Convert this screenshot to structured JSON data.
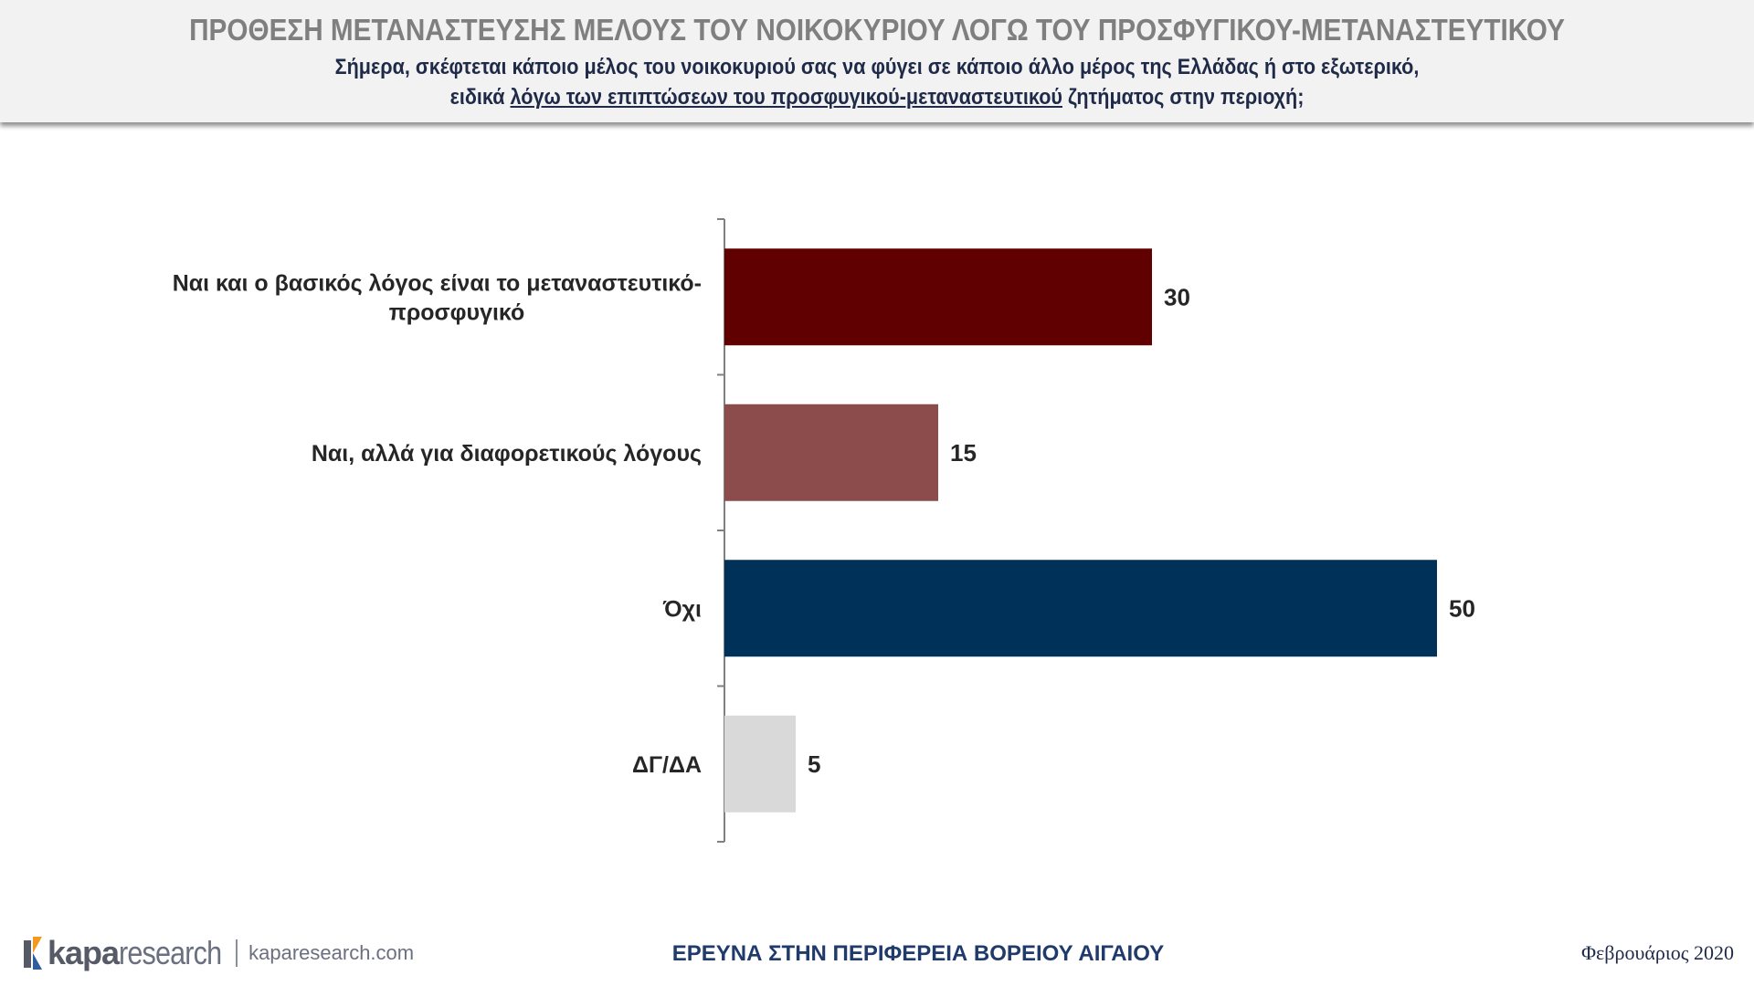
{
  "header": {
    "title": "ΠΡΟΘΕΣΗ ΜΕΤΑΝΑΣΤΕΥΣΗΣ ΜΕΛΟΥΣ ΤΟΥ ΝΟΙΚΟΚΥΡΙΟΥ ΛΟΓΩ ΤΟΥ ΠΡΟΣΦΥΓΙΚΟΥ-ΜΕΤΑΝΑΣΤΕΥΤΙΚΟΥ",
    "subtitle_line1": "Σήμερα, σκέφτεται κάποιο μέλος του νοικοκυριού σας να φύγει σε κάποιο άλλο μέρος της Ελλάδας ή στο εξωτερικό,",
    "subtitle_line2_pre": "ειδικά ",
    "subtitle_line2_underlined": "λόγω των επιπτώσεων του προσφυγικού-μεταναστευτικού",
    "subtitle_line2_post": " ζητήματος στην περιοχή;"
  },
  "chart_data": {
    "type": "bar",
    "orientation": "horizontal",
    "categories": [
      "Ναι και ο βασικός λόγος είναι το μεταναστευτικό-προσφυγικό",
      "Ναι, αλλά για διαφορετικούς λόγους",
      "Όχι",
      "ΔΓ/ΔΑ"
    ],
    "category_lines": [
      [
        "Ναι και ο βασικός λόγος είναι το μεταναστευτικό-",
        "προσφυγικό"
      ],
      [
        "Ναι, αλλά για διαφορετικούς λόγους"
      ],
      [
        "Όχι"
      ],
      [
        "ΔΓ/ΔΑ"
      ]
    ],
    "values": [
      30,
      15,
      50,
      5
    ],
    "data_labels": [
      "30",
      "15",
      "50",
      "5"
    ],
    "colors": [
      "#600000",
      "#8c4c4c",
      "#003259",
      "#d9d9d9"
    ],
    "xlim": [
      0,
      50
    ],
    "grid": false,
    "legend": "none"
  },
  "footer": {
    "logo_kapa": "kapa",
    "logo_research": "research",
    "logo_url": "kaparesearch.com",
    "center_text": "ΕΡΕΥΝΑ ΣΤΗΝ ΠΕΡΙΦΕΡΕΙΑ ΒΟΡΕΙΟΥ ΑΙΓΑΙΟΥ",
    "date": "Φεβρουάριος 2020",
    "logo_colors": {
      "orange": "#f39a1e",
      "blue": "#2f5d9e",
      "gray": "#555a66"
    }
  }
}
